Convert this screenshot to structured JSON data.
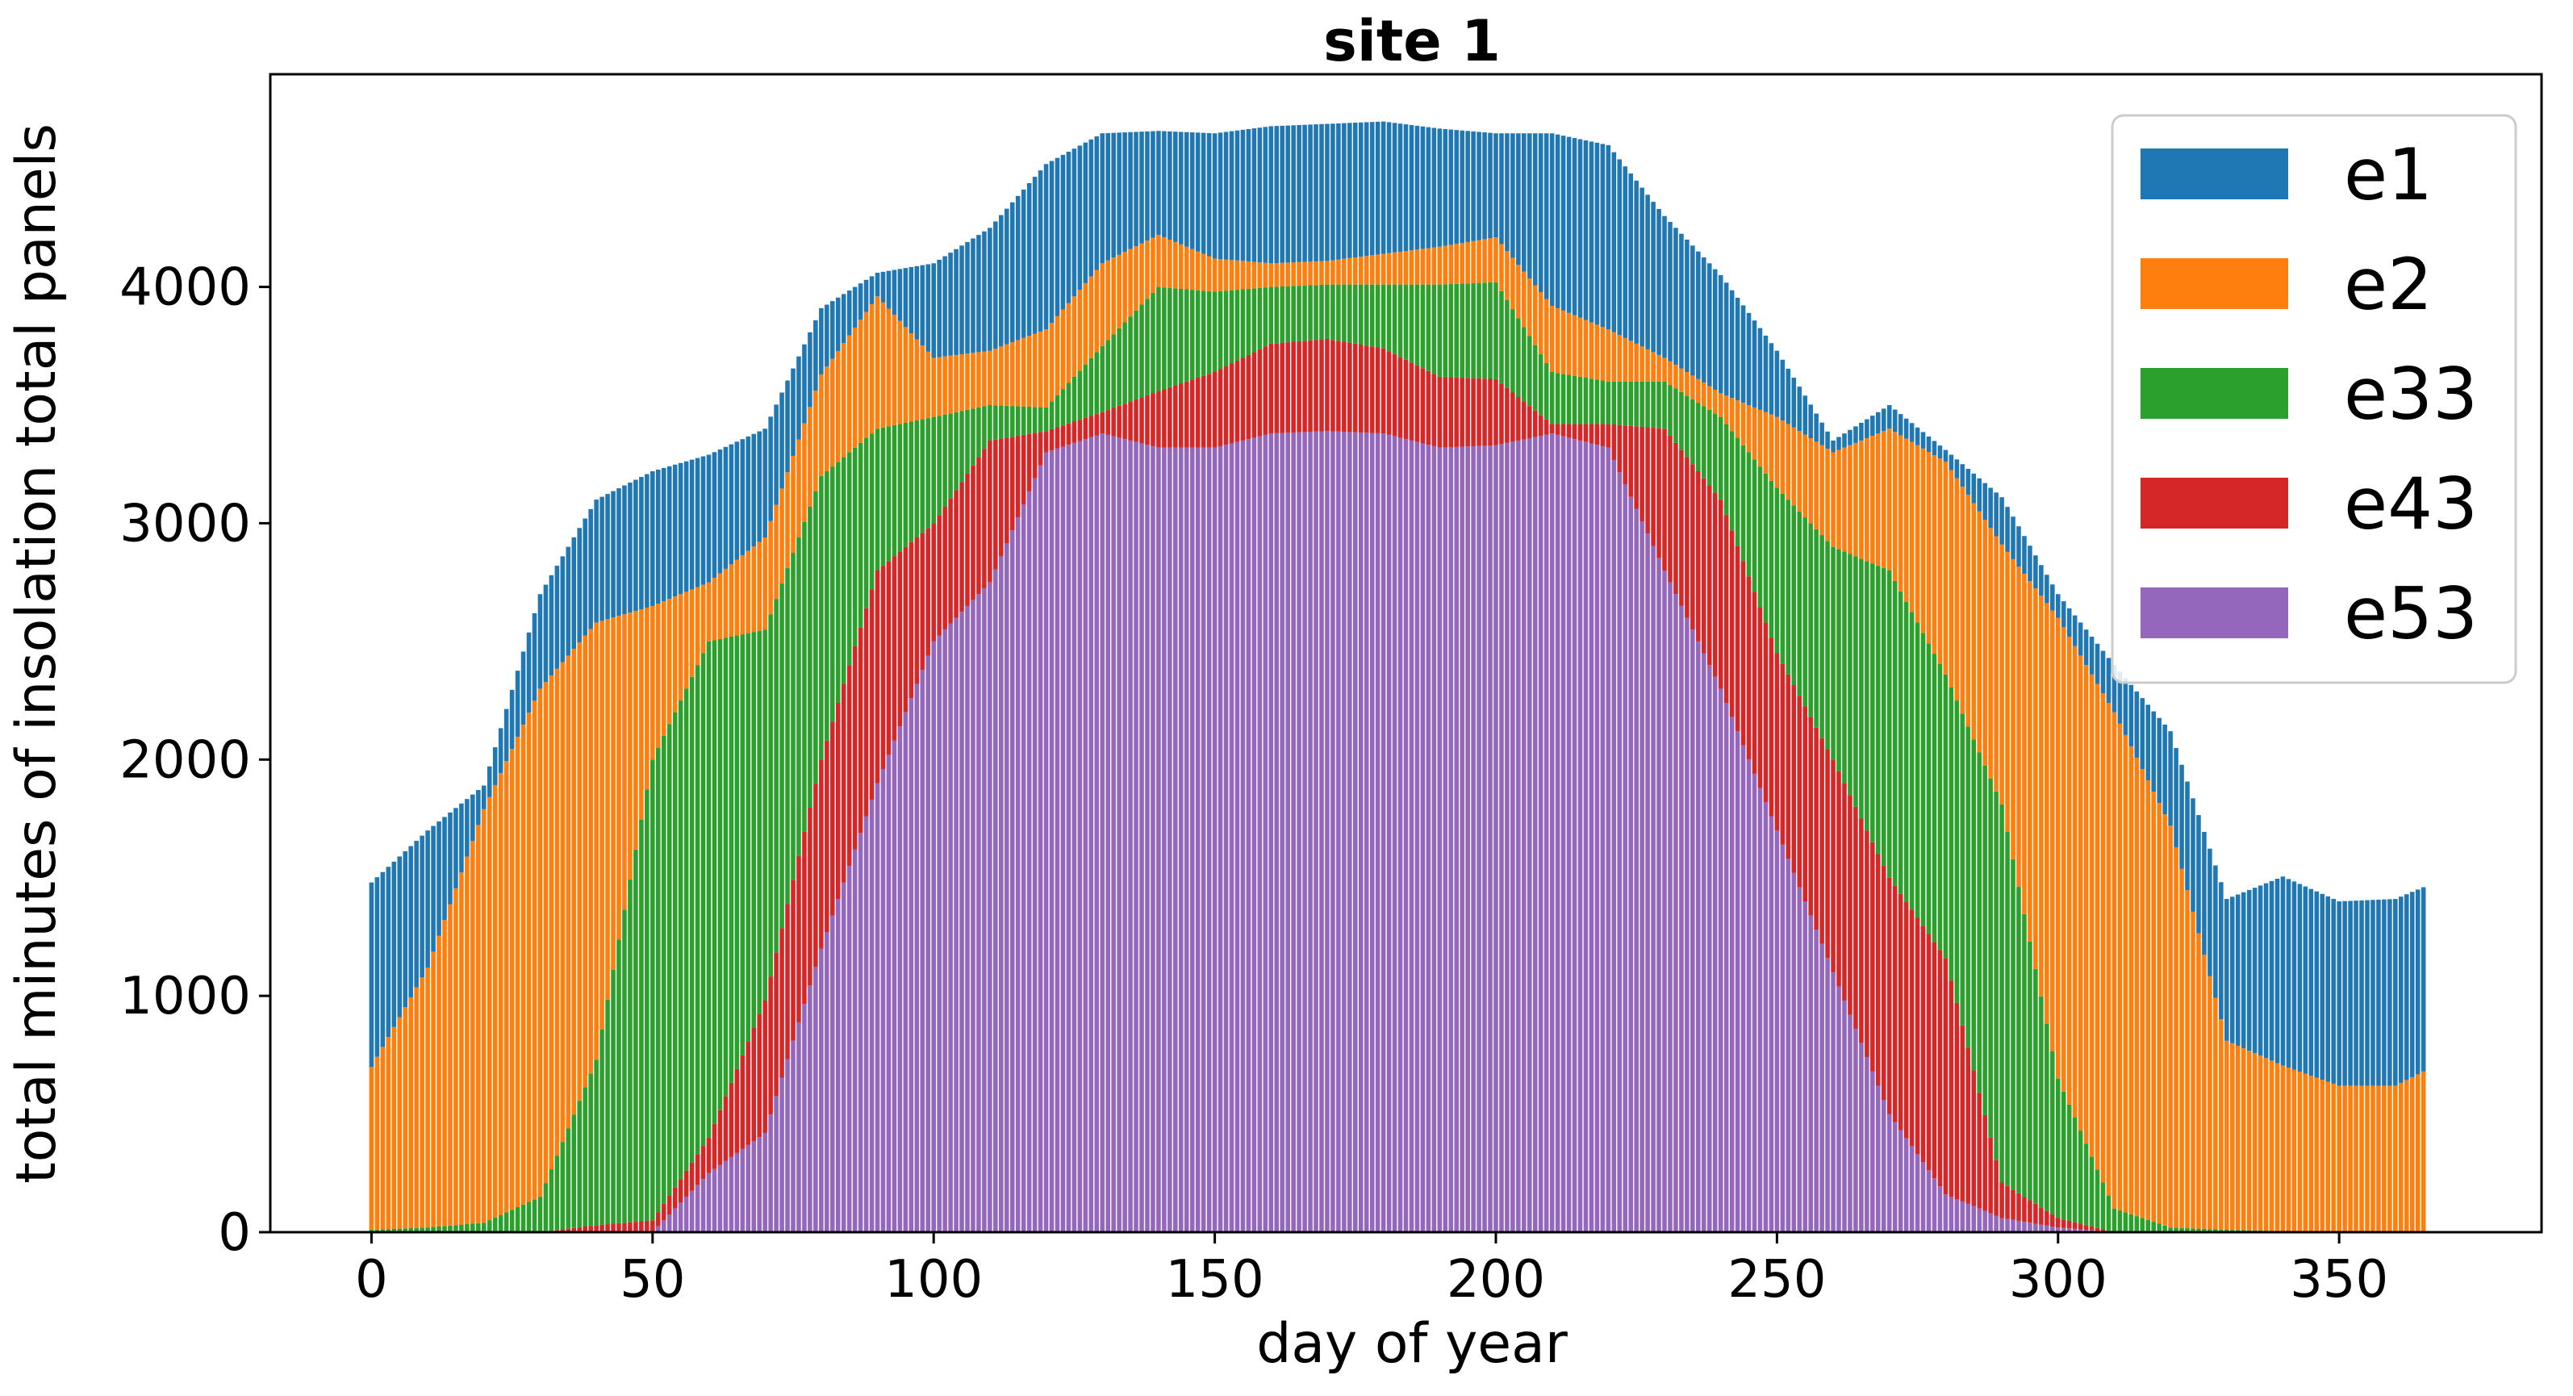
{
  "chart_data": {
    "type": "bar",
    "stacked": true,
    "title": "site 1",
    "xlabel": "day of year",
    "ylabel": "total minutes of insolation total panels",
    "xlim": [
      -18,
      386
    ],
    "ylim": [
      0,
      4900
    ],
    "xticks": [
      0,
      50,
      100,
      150,
      200,
      250,
      300,
      350
    ],
    "yticks": [
      0,
      1000,
      2000,
      3000,
      4000
    ],
    "grid": false,
    "legend": {
      "placement": "top-right"
    },
    "x_days": [
      0,
      10,
      20,
      30,
      40,
      50,
      60,
      70,
      80,
      90,
      100,
      110,
      120,
      130,
      140,
      150,
      160,
      170,
      180,
      190,
      200,
      210,
      220,
      230,
      240,
      250,
      260,
      270,
      280,
      290,
      300,
      310,
      320,
      330,
      340,
      350,
      360,
      365
    ],
    "series": [
      {
        "name": "e53",
        "color": "#9467bd",
        "values": [
          0,
          0,
          0,
          0,
          0,
          0,
          250,
          420,
          1200,
          1900,
          2500,
          2750,
          3300,
          3380,
          3320,
          3320,
          3380,
          3390,
          3380,
          3320,
          3330,
          3380,
          3320,
          2800,
          2300,
          1700,
          1100,
          500,
          160,
          60,
          20,
          0,
          0,
          0,
          0,
          0,
          0,
          0
        ]
      },
      {
        "name": "e43",
        "color": "#d62728",
        "values": [
          0,
          0,
          0,
          0,
          30,
          50,
          150,
          560,
          800,
          900,
          500,
          600,
          90,
          90,
          240,
          320,
          380,
          390,
          360,
          300,
          280,
          40,
          100,
          600,
          800,
          750,
          900,
          1000,
          1000,
          150,
          40,
          0,
          0,
          0,
          0,
          0,
          0,
          0
        ]
      },
      {
        "name": "e33",
        "color": "#2ca02c",
        "values": [
          10,
          20,
          40,
          150,
          700,
          1950,
          2100,
          1570,
          1200,
          600,
          450,
          150,
          100,
          280,
          440,
          340,
          240,
          230,
          270,
          390,
          410,
          220,
          180,
          200,
          350,
          700,
          900,
          1300,
          1200,
          1600,
          590,
          100,
          20,
          10,
          5,
          0,
          0,
          0
        ]
      },
      {
        "name": "e2",
        "color": "#ff7f0e",
        "values": [
          690,
          1100,
          1750,
          2150,
          1850,
          650,
          250,
          390,
          430,
          560,
          250,
          230,
          330,
          350,
          220,
          140,
          100,
          100,
          130,
          160,
          190,
          280,
          220,
          100,
          100,
          300,
          400,
          600,
          900,
          1100,
          1950,
          2100,
          1700,
          800,
          700,
          620,
          620,
          680
        ]
      },
      {
        "name": "e1",
        "color": "#1f77b4",
        "values": [
          780,
          580,
          100,
          400,
          520,
          570,
          540,
          460,
          280,
          100,
          400,
          520,
          700,
          550,
          440,
          530,
          580,
          580,
          560,
          500,
          440,
          730,
          780,
          600,
          500,
          280,
          50,
          100,
          50,
          200,
          100,
          200,
          400,
          600,
          800,
          780,
          790,
          780
        ]
      }
    ]
  },
  "legend_order": [
    "e1",
    "e2",
    "e33",
    "e43",
    "e53"
  ]
}
